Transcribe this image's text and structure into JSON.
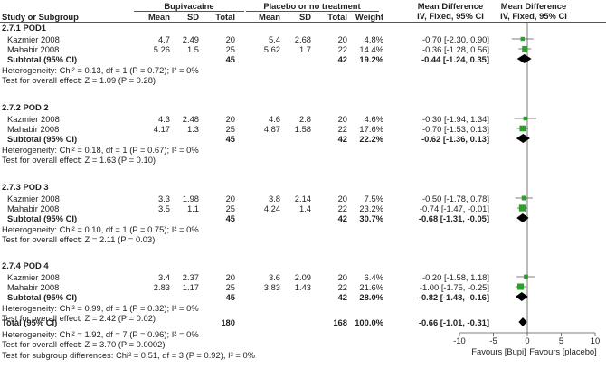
{
  "header": {
    "group1": "Bupivacaine",
    "group2": "Placebo or no treatment",
    "md_col": "Mean Difference",
    "md_col2": "Mean Difference",
    "sub": "IV, Fixed, 95% CI",
    "sub2": "IV, Fixed, 95% CI",
    "study": "Study or Subgroup",
    "mean1": "Mean",
    "sd1": "SD",
    "total1": "Total",
    "mean2": "Mean",
    "sd2": "SD",
    "total2": "Total",
    "weight": "Weight"
  },
  "subgroups": [
    {
      "title": "2.7.1 POD1",
      "studies": [
        {
          "name": "Kazmier 2008",
          "m1": "4.7",
          "sd1": "2.49",
          "n1": "20",
          "m2": "5.4",
          "sd2": "2.68",
          "n2": "20",
          "w": "4.8%",
          "ci": "-0.70 [-2.30, 0.90]",
          "md": -0.7,
          "lo": -2.3,
          "hi": 0.9,
          "wv": 4.8
        },
        {
          "name": "Mahabir 2008",
          "m1": "5.26",
          "sd1": "1.5",
          "n1": "25",
          "m2": "5.62",
          "sd2": "1.7",
          "n2": "22",
          "w": "14.4%",
          "ci": "-0.36 [-1.28, 0.56]",
          "md": -0.36,
          "lo": -1.28,
          "hi": 0.56,
          "wv": 14.4
        }
      ],
      "subtotal": {
        "label": "Subtotal (95% CI)",
        "n1": "45",
        "n2": "42",
        "w": "19.2%",
        "ci": "-0.44 [-1.24, 0.35]",
        "md": -0.44,
        "lo": -1.24,
        "hi": 0.35
      },
      "het": "Heterogeneity: Chi² = 0.13, df = 1 (P = 0.72); I² = 0%",
      "test": "Test for overall effect: Z = 1.09 (P = 0.28)"
    },
    {
      "title": "2.7.2 POD 2",
      "studies": [
        {
          "name": "Kazmier 2008",
          "m1": "4.3",
          "sd1": "2.48",
          "n1": "20",
          "m2": "4.6",
          "sd2": "2.8",
          "n2": "20",
          "w": "4.6%",
          "ci": "-0.30 [-1.94, 1.34]",
          "md": -0.3,
          "lo": -1.94,
          "hi": 1.34,
          "wv": 4.6
        },
        {
          "name": "Mahabir 2008",
          "m1": "4.17",
          "sd1": "1.3",
          "n1": "25",
          "m2": "4.87",
          "sd2": "1.58",
          "n2": "22",
          "w": "17.6%",
          "ci": "-0.70 [-1.53, 0.13]",
          "md": -0.7,
          "lo": -1.53,
          "hi": 0.13,
          "wv": 17.6
        }
      ],
      "subtotal": {
        "label": "Subtotal (95% CI)",
        "n1": "45",
        "n2": "42",
        "w": "22.2%",
        "ci": "-0.62 [-1.36, 0.13]",
        "md": -0.62,
        "lo": -1.36,
        "hi": 0.13
      },
      "het": "Heterogeneity: Chi² = 0.18, df = 1 (P = 0.67); I² = 0%",
      "test": "Test for overall effect: Z = 1.63 (P = 0.10)"
    },
    {
      "title": "2.7.3 POD 3",
      "studies": [
        {
          "name": "Kazmier 2008",
          "m1": "3.3",
          "sd1": "1.98",
          "n1": "20",
          "m2": "3.8",
          "sd2": "2.14",
          "n2": "20",
          "w": "7.5%",
          "ci": "-0.50 [-1.78, 0.78]",
          "md": -0.5,
          "lo": -1.78,
          "hi": 0.78,
          "wv": 7.5
        },
        {
          "name": "Mahabir 2008",
          "m1": "3.5",
          "sd1": "1.1",
          "n1": "25",
          "m2": "4.24",
          "sd2": "1.4",
          "n2": "22",
          "w": "23.2%",
          "ci": "-0.74 [-1.47, -0.01]",
          "md": -0.74,
          "lo": -1.47,
          "hi": -0.01,
          "wv": 23.2
        }
      ],
      "subtotal": {
        "label": "Subtotal (95% CI)",
        "n1": "45",
        "n2": "42",
        "w": "30.7%",
        "ci": "-0.68 [-1.31, -0.05]",
        "md": -0.68,
        "lo": -1.31,
        "hi": -0.05
      },
      "het": "Heterogeneity: Chi² = 0.10, df = 1 (P = 0.75); I² = 0%",
      "test": "Test for overall effect: Z = 2.11 (P = 0.03)"
    },
    {
      "title": "2.7.4 POD 4",
      "studies": [
        {
          "name": "Kazmier 2008",
          "m1": "3.4",
          "sd1": "2.37",
          "n1": "20",
          "m2": "3.6",
          "sd2": "2.09",
          "n2": "20",
          "w": "6.4%",
          "ci": "-0.20 [-1.58, 1.18]",
          "md": -0.2,
          "lo": -1.58,
          "hi": 1.18,
          "wv": 6.4
        },
        {
          "name": "Mahabir 2008",
          "m1": "2.83",
          "sd1": "1.17",
          "n1": "25",
          "m2": "3.83",
          "sd2": "1.43",
          "n2": "22",
          "w": "21.6%",
          "ci": "-1.00 [-1.75, -0.25]",
          "md": -1.0,
          "lo": -1.75,
          "hi": -0.25,
          "wv": 21.6
        }
      ],
      "subtotal": {
        "label": "Subtotal (95% CI)",
        "n1": "45",
        "n2": "42",
        "w": "28.0%",
        "ci": "-0.82 [-1.48, -0.16]",
        "md": -0.82,
        "lo": -1.48,
        "hi": -0.16
      },
      "het": "Heterogeneity: Chi² = 0.99, df = 1 (P = 0.32); I² = 0%",
      "test": "Test for overall effect: Z = 2.42 (P = 0.02)"
    }
  ],
  "total": {
    "label": "Total (95% CI)",
    "n1": "180",
    "n2": "168",
    "w": "100.0%",
    "ci": "-0.66 [-1.01, -0.31]",
    "md": -0.66,
    "lo": -1.01,
    "hi": -0.31
  },
  "footer": {
    "het": "Heterogeneity: Chi² = 1.92, df = 7 (P = 0.96); I² = 0%",
    "test": "Test for overall effect: Z = 3.70 (P = 0.0002)",
    "subgroup": "Test for subgroup differences: Chi² = 0.51, df = 3 (P = 0.92), I² = 0%"
  },
  "axis": {
    "ticks": [
      -10,
      -5,
      0,
      5,
      10
    ],
    "tick_labels": [
      "-10",
      "-5",
      "0",
      "5",
      "10"
    ],
    "left_label": "Favours [Bupi]",
    "right_label": "Favours [placebo]",
    "range": [
      -10,
      10
    ]
  },
  "colors": {
    "square": "#2ca02c",
    "diamond": "#000000",
    "line": "#555555"
  }
}
